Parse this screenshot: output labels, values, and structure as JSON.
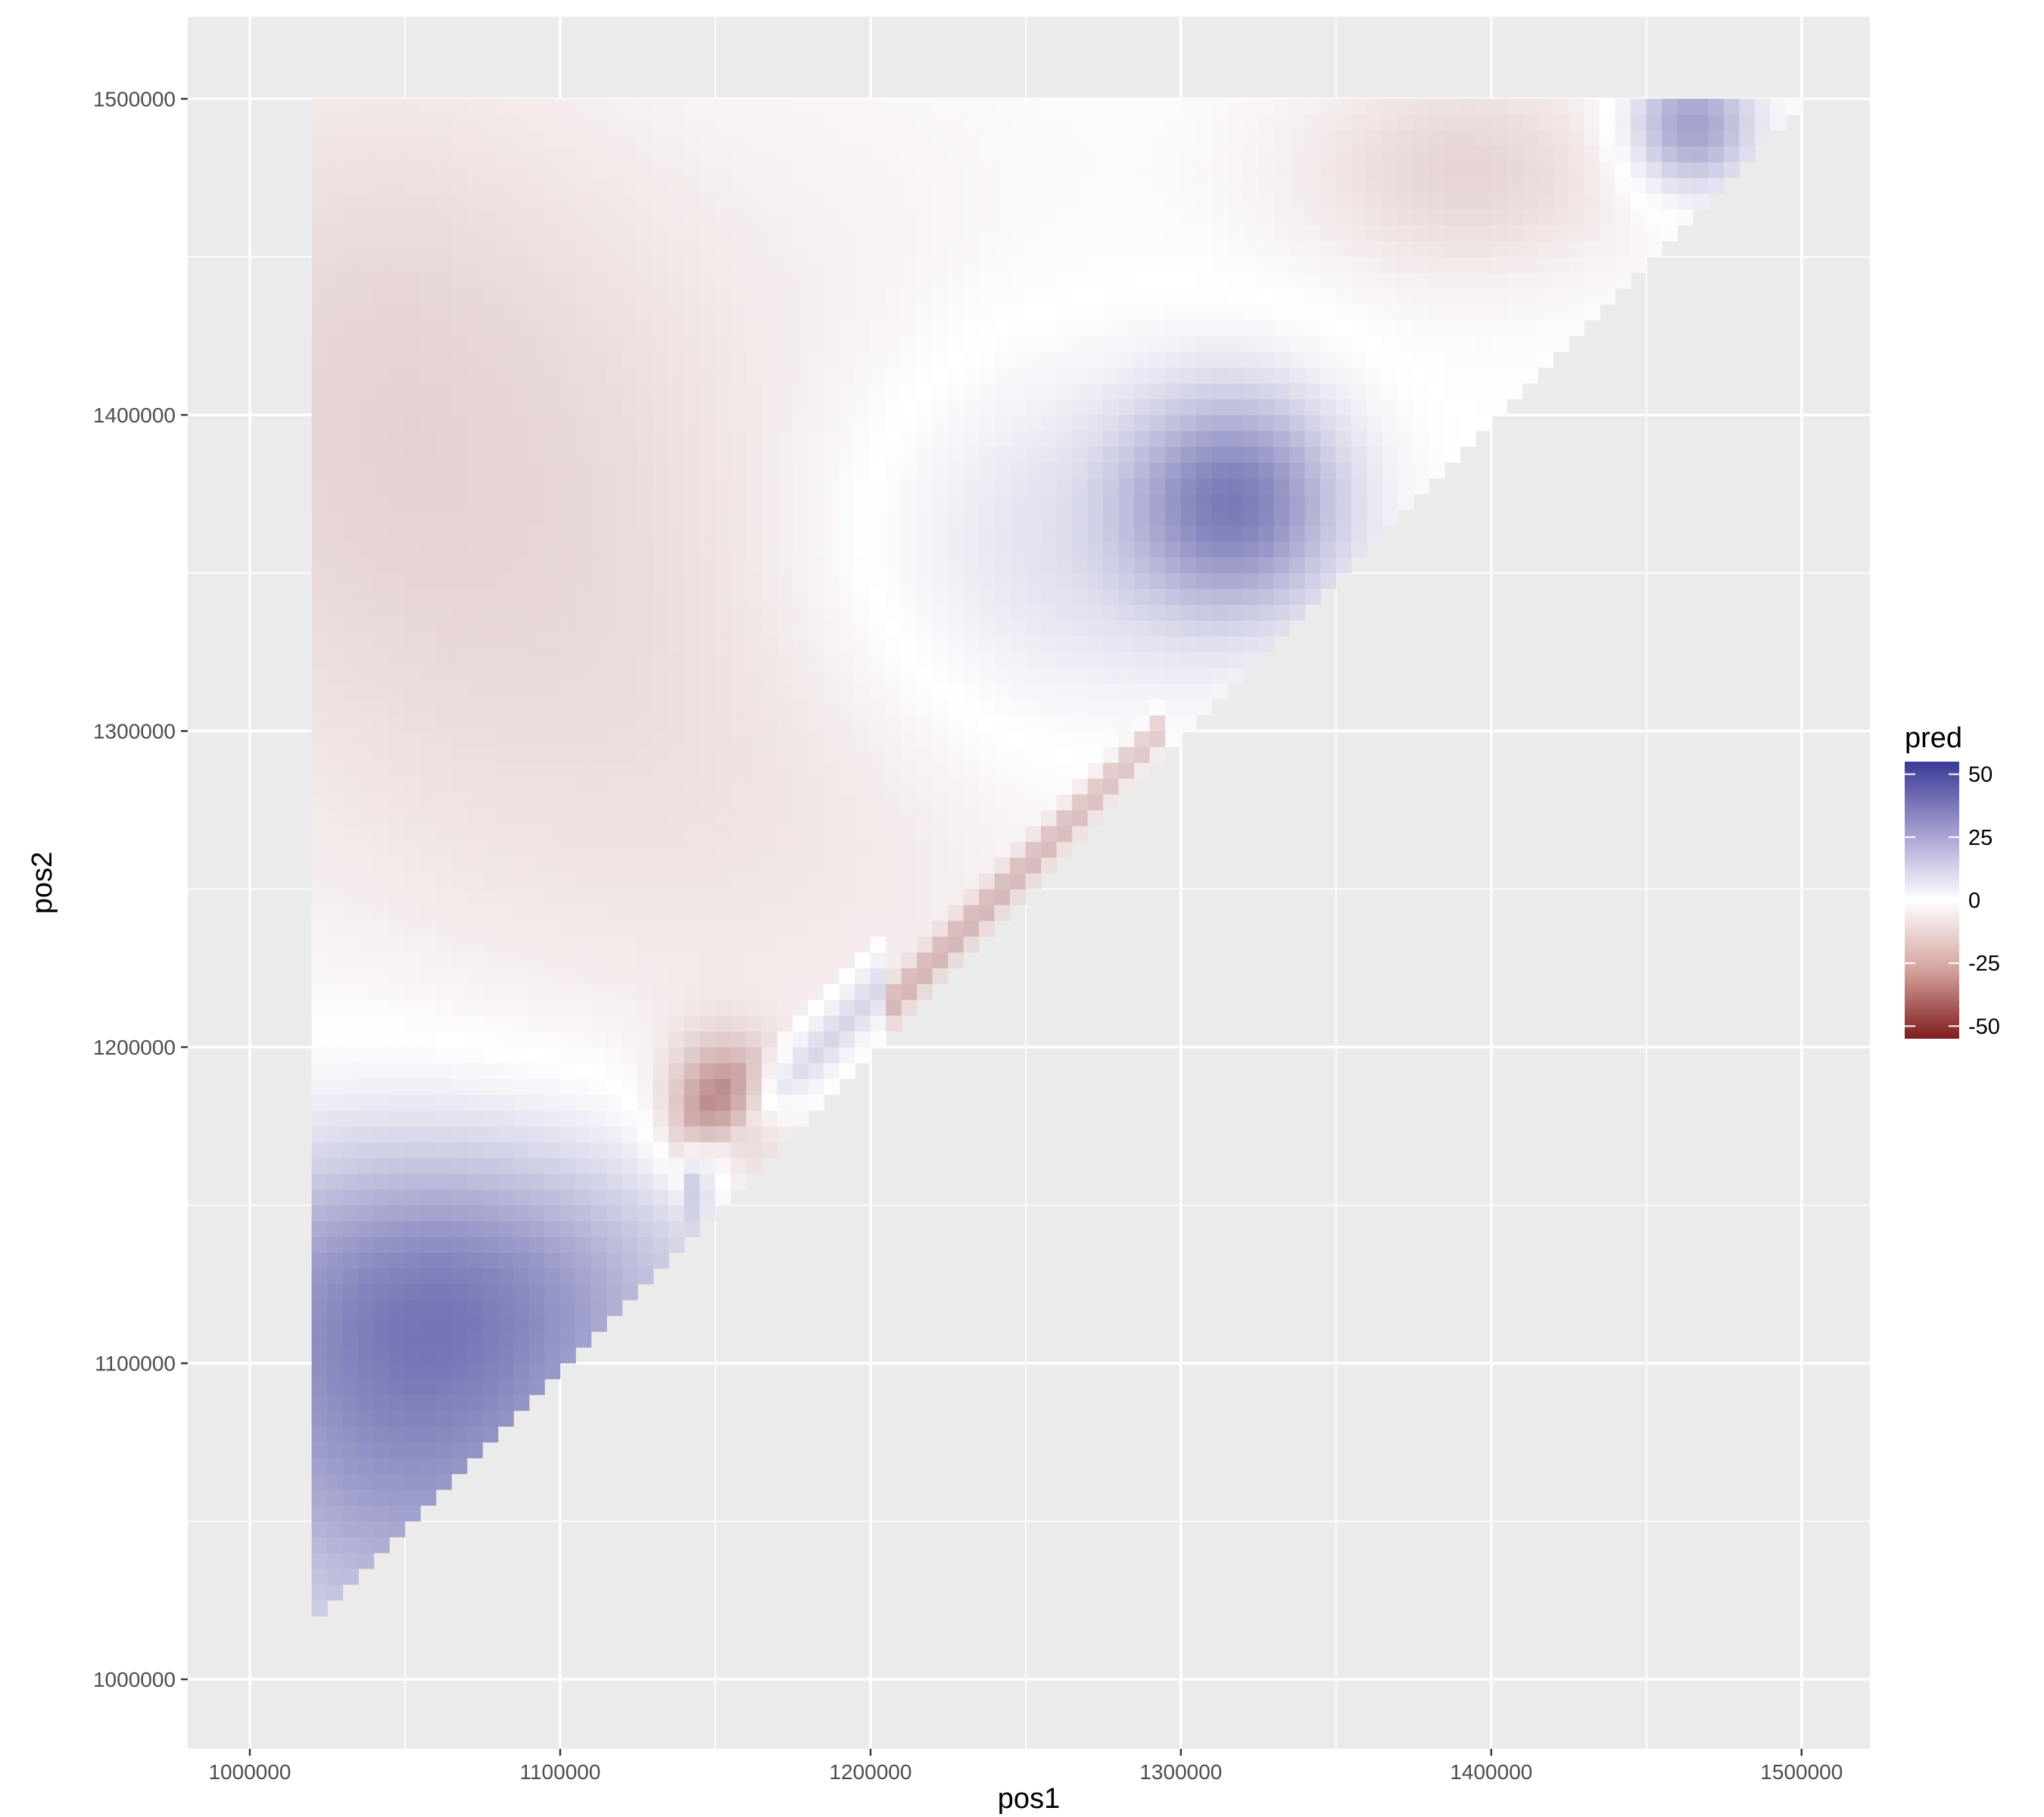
{
  "chart_data": {
    "type": "heatmap",
    "xlabel": "pos1",
    "ylabel": "pos2",
    "xlim": [
      980000,
      1522000
    ],
    "ylim": [
      978000,
      1526000
    ],
    "x_ticks": [
      1000000,
      1100000,
      1200000,
      1300000,
      1400000,
      1500000
    ],
    "y_ticks": [
      1000000,
      1100000,
      1200000,
      1300000,
      1400000,
      1500000
    ],
    "x_tick_labels": [
      "1000000",
      "1100000",
      "1200000",
      "1300000",
      "1400000",
      "1500000"
    ],
    "y_tick_labels": [
      "1000000",
      "1100000",
      "1200000",
      "1300000",
      "1400000",
      "1500000"
    ],
    "grid": true,
    "grid_minor": true,
    "panel_background": "#ebebeb",
    "grid_color": "#ffffff",
    "cell_size": 5000,
    "domain": {
      "x_start": 1020000,
      "y_end": 1502500,
      "triangle": "pos2 >= pos1"
    },
    "legend": {
      "title": "pred",
      "position": "right",
      "breaks": [
        50,
        25,
        0,
        -25,
        -50
      ],
      "labels": [
        "50",
        "25",
        "0",
        "-25",
        "-50"
      ],
      "limits": [
        -55,
        55
      ],
      "low_color": "#7f1d1d",
      "mid_color": "#ffffff",
      "high_color": "#3a3a96"
    },
    "features": [
      {
        "kind": "blob",
        "x": 1050000,
        "y": 1085000,
        "value": 30,
        "sx": 55000,
        "sy": 55000
      },
      {
        "kind": "blob",
        "x": 1070000,
        "y": 1130000,
        "value": 16,
        "sx": 60000,
        "sy": 30000
      },
      {
        "kind": "blob",
        "x": 1150000,
        "y": 1182000,
        "value": -30,
        "sx": 12000,
        "sy": 15000
      },
      {
        "kind": "blob",
        "x": 1315000,
        "y": 1375000,
        "value": 33,
        "sx": 24000,
        "sy": 24000
      },
      {
        "kind": "blob",
        "x": 1255000,
        "y": 1360000,
        "value": 12,
        "sx": 55000,
        "sy": 45000
      },
      {
        "kind": "blob",
        "x": 1390000,
        "y": 1480000,
        "value": -10,
        "sx": 40000,
        "sy": 25000
      },
      {
        "kind": "blob",
        "x": 1462000,
        "y": 1494000,
        "value": 28,
        "sx": 14000,
        "sy": 14000
      },
      {
        "kind": "blob",
        "x": 1140000,
        "y": 1330000,
        "value": -8,
        "sx": 110000,
        "sy": 110000
      },
      {
        "kind": "blob",
        "x": 1030000,
        "y": 1420000,
        "value": -7,
        "sx": 60000,
        "sy": 80000
      },
      {
        "kind": "band",
        "d_min": 2000,
        "d_max": 22000,
        "x_min": 1205000,
        "x_max": 1290000,
        "value": -17
      },
      {
        "kind": "band",
        "d_min": 2000,
        "d_max": 40000,
        "x_min": 1140000,
        "x_max": 1200000,
        "value": 16
      }
    ]
  }
}
